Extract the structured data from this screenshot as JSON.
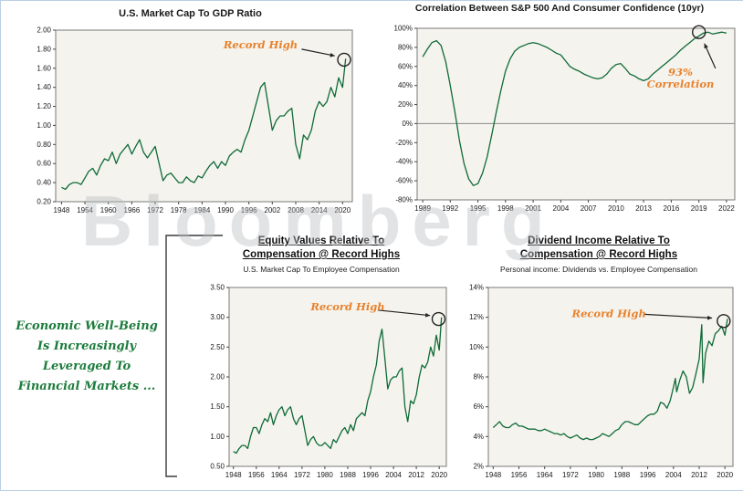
{
  "watermark": "Bloomberg",
  "palette": {
    "annotation": "#e8822d",
    "line": "#0e6b38",
    "note": "#1c7c3c"
  },
  "note": {
    "lines": [
      "Economic Well-Being",
      "Is Increasingly",
      "Leveraged To",
      "Financial Markets ..."
    ]
  },
  "chart_data": [
    {
      "type": "line",
      "title": "U.S. Market Cap To GDP Ratio",
      "color": "#0e6b38",
      "bg": "#f5f3ed",
      "margins": {
        "l": 40,
        "t": 10,
        "r": 10,
        "b": 20
      },
      "xlim": [
        1946.5,
        2022.5
      ],
      "ylim": [
        0.2,
        2.0
      ],
      "xticks": [
        1948,
        1954,
        1960,
        1966,
        1972,
        1978,
        1984,
        1990,
        1996,
        2002,
        2008,
        2014,
        2020
      ],
      "yticks": {
        "values": [
          0.2,
          0.4,
          0.6,
          0.8,
          1.0,
          1.2,
          1.4,
          1.6,
          1.8,
          2.0
        ],
        "labels": [
          "0.20",
          "0.40",
          "0.60",
          "0.80",
          "1.00",
          "1.20",
          "1.40",
          "1.60",
          "1.80",
          "2.00"
        ]
      },
      "x": [
        1948,
        1949,
        1950,
        1951,
        1952,
        1953,
        1954,
        1955,
        1956,
        1957,
        1958,
        1959,
        1960,
        1961,
        1962,
        1963,
        1964,
        1965,
        1966,
        1967,
        1968,
        1969,
        1970,
        1971,
        1972,
        1973,
        1974,
        1975,
        1976,
        1977,
        1978,
        1979,
        1980,
        1981,
        1982,
        1983,
        1984,
        1985,
        1986,
        1987,
        1988,
        1989,
        1990,
        1991,
        1992,
        1993,
        1994,
        1995,
        1996,
        1997,
        1998,
        1999,
        2000,
        2001,
        2002,
        2003,
        2004,
        2005,
        2006,
        2007,
        2008,
        2009,
        2010,
        2011,
        2012,
        2013,
        2014,
        2015,
        2016,
        2017,
        2018,
        2019,
        2020,
        2020.8
      ],
      "y": [
        0.35,
        0.33,
        0.38,
        0.4,
        0.4,
        0.38,
        0.45,
        0.52,
        0.55,
        0.48,
        0.58,
        0.65,
        0.63,
        0.72,
        0.6,
        0.7,
        0.75,
        0.8,
        0.7,
        0.78,
        0.85,
        0.72,
        0.66,
        0.72,
        0.78,
        0.6,
        0.42,
        0.48,
        0.5,
        0.45,
        0.4,
        0.4,
        0.46,
        0.42,
        0.4,
        0.47,
        0.45,
        0.52,
        0.58,
        0.62,
        0.55,
        0.62,
        0.58,
        0.68,
        0.72,
        0.75,
        0.72,
        0.85,
        0.95,
        1.1,
        1.25,
        1.4,
        1.45,
        1.2,
        0.95,
        1.05,
        1.1,
        1.1,
        1.15,
        1.18,
        0.8,
        0.65,
        0.9,
        0.85,
        0.95,
        1.15,
        1.25,
        1.2,
        1.25,
        1.4,
        1.3,
        1.5,
        1.4,
        1.7
      ],
      "annotation": {
        "lines": [
          "Record High"
        ],
        "text": [
          1999,
          1.81
        ],
        "arrow": [
          2009.5,
          1.8,
          2018.0,
          1.73
        ],
        "circle": [
          2020.4,
          1.69
        ]
      }
    },
    {
      "type": "line",
      "title": "Correlation Between S&P 500 And Consumer Confidence (10yr)",
      "color": "#0e6b38",
      "bg": "#f5f3ed",
      "margins": {
        "l": 44,
        "t": 14,
        "r": 8,
        "b": 22
      },
      "xlim": [
        1988.4,
        2022.9
      ],
      "ylim": [
        -0.8,
        1.0
      ],
      "zero_line": true,
      "xticks": [
        1989,
        1992,
        1995,
        1998,
        2001,
        2004,
        2007,
        2010,
        2013,
        2016,
        2019,
        2022
      ],
      "yticks": {
        "values": [
          1.0,
          0.8,
          0.6,
          0.4,
          0.2,
          0.0,
          -0.2,
          -0.4,
          -0.6,
          -0.8
        ],
        "labels": [
          "100%",
          "80%",
          "60%",
          "40%",
          "20%",
          "0%",
          "-20%",
          "-40%",
          "-60%",
          "-80%"
        ]
      },
      "x": [
        1989,
        1989.5,
        1990,
        1990.5,
        1991,
        1991.5,
        1992,
        1992.5,
        1993,
        1993.5,
        1994,
        1994.5,
        1995,
        1995.5,
        1996,
        1996.5,
        1997,
        1997.5,
        1998,
        1998.5,
        1999,
        1999.5,
        2000,
        2000.5,
        2001,
        2001.5,
        2002,
        2002.5,
        2003,
        2003.5,
        2004,
        2004.5,
        2005,
        2005.5,
        2006,
        2006.5,
        2007,
        2007.5,
        2008,
        2008.5,
        2009,
        2009.5,
        2010,
        2010.5,
        2011,
        2011.5,
        2012,
        2012.5,
        2013,
        2013.5,
        2014,
        2014.5,
        2015,
        2015.5,
        2016,
        2016.5,
        2017,
        2017.5,
        2018,
        2018.5,
        2019,
        2019.5,
        2020,
        2020.5,
        2021,
        2021.5,
        2022
      ],
      "y": [
        0.7,
        0.78,
        0.85,
        0.87,
        0.82,
        0.65,
        0.4,
        0.12,
        -0.18,
        -0.42,
        -0.58,
        -0.65,
        -0.63,
        -0.52,
        -0.35,
        -0.12,
        0.12,
        0.35,
        0.55,
        0.68,
        0.76,
        0.8,
        0.82,
        0.84,
        0.85,
        0.84,
        0.82,
        0.8,
        0.77,
        0.74,
        0.72,
        0.66,
        0.6,
        0.57,
        0.55,
        0.52,
        0.5,
        0.48,
        0.47,
        0.48,
        0.52,
        0.58,
        0.62,
        0.63,
        0.58,
        0.52,
        0.5,
        0.47,
        0.45,
        0.47,
        0.52,
        0.56,
        0.6,
        0.64,
        0.68,
        0.72,
        0.77,
        0.81,
        0.85,
        0.89,
        0.92,
        0.95,
        0.96,
        0.94,
        0.95,
        0.96,
        0.95
      ],
      "annotation": {
        "lines": [
          "93%",
          "Correlation"
        ],
        "text": [
          2017,
          0.5
        ],
        "arrow": [
          2020.8,
          0.58,
          2019.6,
          0.84
        ],
        "circle": [
          2019.0,
          0.96
        ]
      }
    },
    {
      "type": "line",
      "title_lines": [
        "Equity Values Relative To",
        "Compensation @ Record Highs"
      ],
      "subtitle": "U.S. Market Cap To Employee Compensation",
      "color": "#0e6b38",
      "bg": "#f5f3ed",
      "margins": {
        "l": 42,
        "t": 14,
        "r": 6,
        "b": 22
      },
      "xlim": [
        1946.5,
        2022.5
      ],
      "ylim": [
        0.5,
        3.5
      ],
      "xticks": [
        1948,
        1956,
        1964,
        1972,
        1980,
        1988,
        1996,
        2004,
        2012,
        2020
      ],
      "yticks": {
        "values": [
          0.5,
          1.0,
          1.5,
          2.0,
          2.5,
          3.0,
          3.5
        ],
        "labels": [
          "0.50",
          "1.00",
          "1.50",
          "2.00",
          "2.50",
          "3.00",
          "3.50"
        ]
      },
      "x": [
        1948,
        1949,
        1950,
        1951,
        1952,
        1953,
        1954,
        1955,
        1956,
        1957,
        1958,
        1959,
        1960,
        1961,
        1962,
        1963,
        1964,
        1965,
        1966,
        1967,
        1968,
        1969,
        1970,
        1971,
        1972,
        1973,
        1974,
        1975,
        1976,
        1977,
        1978,
        1979,
        1980,
        1981,
        1982,
        1983,
        1984,
        1985,
        1986,
        1987,
        1988,
        1989,
        1990,
        1991,
        1992,
        1993,
        1994,
        1995,
        1996,
        1997,
        1998,
        1999,
        2000,
        2001,
        2002,
        2003,
        2004,
        2005,
        2006,
        2007,
        2008,
        2009,
        2010,
        2011,
        2012,
        2013,
        2014,
        2015,
        2016,
        2017,
        2018,
        2019,
        2020,
        2020.8
      ],
      "y": [
        0.75,
        0.72,
        0.8,
        0.85,
        0.85,
        0.8,
        1.0,
        1.15,
        1.15,
        1.05,
        1.2,
        1.3,
        1.25,
        1.4,
        1.2,
        1.35,
        1.45,
        1.5,
        1.35,
        1.45,
        1.5,
        1.3,
        1.2,
        1.3,
        1.35,
        1.1,
        0.85,
        0.95,
        1.0,
        0.9,
        0.85,
        0.85,
        0.9,
        0.85,
        0.8,
        0.95,
        0.9,
        1.0,
        1.1,
        1.15,
        1.05,
        1.2,
        1.1,
        1.3,
        1.35,
        1.4,
        1.35,
        1.6,
        1.75,
        2.0,
        2.2,
        2.6,
        2.8,
        2.3,
        1.8,
        1.95,
        2.0,
        2.0,
        2.1,
        2.15,
        1.5,
        1.25,
        1.6,
        1.55,
        1.7,
        2.0,
        2.2,
        2.15,
        2.25,
        2.5,
        2.35,
        2.7,
        2.45,
        3.0
      ],
      "annotation": {
        "lines": [
          "Record High"
        ],
        "text": [
          1988,
          3.12
        ],
        "arrow": [
          1998.5,
          3.12,
          2016.8,
          3.03
        ],
        "circle": [
          2019.8,
          2.97
        ]
      }
    },
    {
      "type": "line",
      "title_lines": [
        "Dividend Income Relative To",
        "Compensation @ Record Highs"
      ],
      "subtitle": "Personal income: Dividends vs. Employee Compensation",
      "color": "#0e6b38",
      "bg": "#f5f3ed",
      "margins": {
        "l": 36,
        "t": 14,
        "r": 10,
        "b": 22
      },
      "xlim": [
        1946.5,
        2022.5
      ],
      "ylim": [
        2,
        14
      ],
      "xticks": [
        1948,
        1956,
        1964,
        1972,
        1980,
        1988,
        1996,
        2004,
        2012,
        2020
      ],
      "yticks": {
        "values": [
          2,
          4,
          6,
          8,
          10,
          12,
          14
        ],
        "labels": [
          "2%",
          "4%",
          "6%",
          "8%",
          "10%",
          "12%",
          "14%"
        ]
      },
      "x": [
        1948,
        1949,
        1950,
        1951,
        1952,
        1953,
        1954,
        1955,
        1956,
        1957,
        1958,
        1959,
        1960,
        1961,
        1962,
        1963,
        1964,
        1965,
        1966,
        1967,
        1968,
        1969,
        1970,
        1971,
        1972,
        1973,
        1974,
        1975,
        1976,
        1977,
        1978,
        1979,
        1980,
        1981,
        1982,
        1983,
        1984,
        1985,
        1986,
        1987,
        1988,
        1989,
        1990,
        1991,
        1992,
        1993,
        1994,
        1995,
        1996,
        1997,
        1998,
        1999,
        2000,
        2001,
        2002,
        2003,
        2004,
        2004.6,
        2005,
        2006,
        2007,
        2008,
        2009,
        2010,
        2011,
        2012,
        2012.8,
        2013.2,
        2014,
        2015,
        2016,
        2017,
        2018,
        2019,
        2020,
        2020.8
      ],
      "y": [
        4.6,
        4.8,
        5.0,
        4.7,
        4.6,
        4.6,
        4.8,
        4.9,
        4.7,
        4.7,
        4.6,
        4.5,
        4.5,
        4.5,
        4.4,
        4.4,
        4.5,
        4.4,
        4.3,
        4.2,
        4.2,
        4.1,
        4.2,
        4.0,
        3.9,
        4.0,
        4.1,
        3.9,
        3.8,
        3.9,
        3.8,
        3.8,
        3.9,
        4.0,
        4.2,
        4.1,
        4.0,
        4.2,
        4.4,
        4.5,
        4.8,
        5.0,
        5.0,
        4.9,
        4.8,
        4.8,
        5.0,
        5.2,
        5.4,
        5.5,
        5.5,
        5.7,
        6.3,
        6.2,
        5.9,
        6.4,
        7.3,
        7.9,
        7.0,
        7.8,
        8.4,
        8.0,
        6.9,
        7.3,
        8.2,
        9.2,
        11.5,
        7.6,
        9.6,
        10.4,
        10.1,
        10.9,
        11.1,
        11.4,
        10.8,
        11.9
      ],
      "annotation": {
        "lines": [
          "Record High"
        ],
        "text": [
          1984,
          12.0
        ],
        "arrow": [
          1995,
          12.2,
          2016,
          11.95
        ],
        "circle": [
          2019.6,
          11.75
        ]
      }
    }
  ]
}
